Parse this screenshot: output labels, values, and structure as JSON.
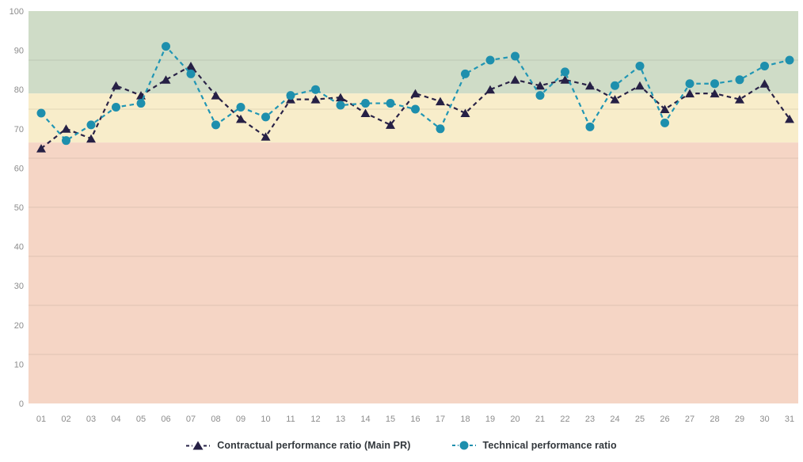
{
  "chart_data": {
    "type": "line",
    "title": "",
    "x_categories": [
      "01",
      "02",
      "03",
      "04",
      "05",
      "06",
      "07",
      "08",
      "09",
      "10",
      "11",
      "12",
      "13",
      "14",
      "15",
      "16",
      "17",
      "18",
      "19",
      "20",
      "21",
      "22",
      "23",
      "24",
      "25",
      "26",
      "27",
      "28",
      "29",
      "30",
      "31"
    ],
    "y_ticks": [
      100,
      90,
      80,
      70,
      60,
      50,
      40,
      30,
      20,
      10,
      0
    ],
    "y_range": [
      0,
      100
    ],
    "grid_on": true,
    "grid_values": [
      87.5,
      75,
      62.5,
      50,
      37.5,
      25,
      12.5
    ],
    "axis_label_color": "#8c8c8c",
    "legend_position": "bottom",
    "bands": [
      {
        "name": "good",
        "from": 79,
        "to": 100,
        "color": "#cfdcc7"
      },
      {
        "name": "warning",
        "from": 66.5,
        "to": 79,
        "color": "#f8edca"
      },
      {
        "name": "critical",
        "from": 0,
        "to": 66.5,
        "color": "#f5d5c5"
      }
    ],
    "series": [
      {
        "name": "Contractual performance ratio (Main PR)",
        "marker": "triangle",
        "color": "#262045",
        "line_color": "#2a2347",
        "values": [
          65,
          70,
          67.5,
          81,
          78.5,
          82.5,
          86,
          78.5,
          72.5,
          68,
          77.5,
          77.5,
          78,
          74,
          71,
          79,
          77,
          74,
          80,
          82.5,
          81,
          82.5,
          81,
          77.5,
          81,
          75,
          79,
          79,
          77.5,
          81.5,
          72.5
        ]
      },
      {
        "name": "Technical performance ratio",
        "marker": "circle",
        "color": "#1e8fad",
        "line_color": "#2196b4",
        "values": [
          74,
          67,
          71,
          75.5,
          76.5,
          91,
          84,
          71,
          75.5,
          73,
          78.5,
          80,
          76,
          76.5,
          76.5,
          75,
          70,
          84,
          87.5,
          88.5,
          78.5,
          84.5,
          70.5,
          81,
          86,
          71.5,
          81.5,
          81.5,
          82.5,
          86,
          87.5
        ]
      }
    ]
  }
}
